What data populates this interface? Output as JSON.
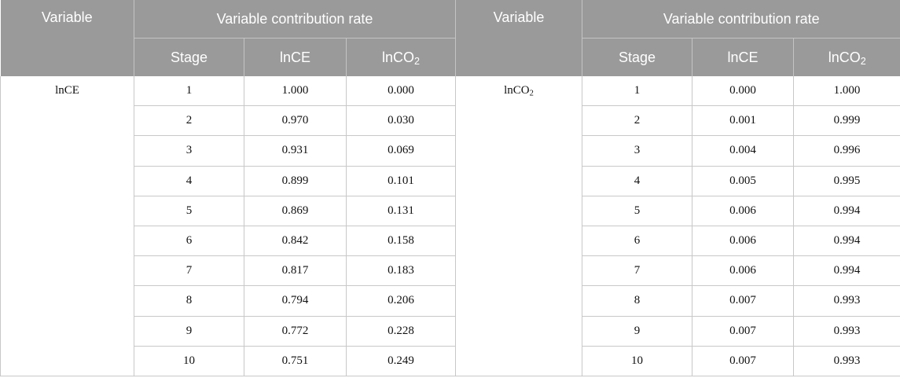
{
  "header": {
    "variable": "Variable",
    "contribution_rate": "Variable contribution rate",
    "stage": "Stage",
    "lnCE": "lnCE",
    "lnCO_prefix": "lnCO",
    "lnCO_sub": "2"
  },
  "left": {
    "variable": "lnCE",
    "rows": [
      {
        "stage": "1",
        "lnCE": "1.000",
        "lnCO2": "0.000"
      },
      {
        "stage": "2",
        "lnCE": "0.970",
        "lnCO2": "0.030"
      },
      {
        "stage": "3",
        "lnCE": "0.931",
        "lnCO2": "0.069"
      },
      {
        "stage": "4",
        "lnCE": "0.899",
        "lnCO2": "0.101"
      },
      {
        "stage": "5",
        "lnCE": "0.869",
        "lnCO2": "0.131"
      },
      {
        "stage": "6",
        "lnCE": "0.842",
        "lnCO2": "0.158"
      },
      {
        "stage": "7",
        "lnCE": "0.817",
        "lnCO2": "0.183"
      },
      {
        "stage": "8",
        "lnCE": "0.794",
        "lnCO2": "0.206"
      },
      {
        "stage": "9",
        "lnCE": "0.772",
        "lnCO2": "0.228"
      },
      {
        "stage": "10",
        "lnCE": "0.751",
        "lnCO2": "0.249"
      }
    ]
  },
  "right": {
    "variable_prefix": "lnCO",
    "variable_sub": "2",
    "rows": [
      {
        "stage": "1",
        "lnCE": "0.000",
        "lnCO2": "1.000"
      },
      {
        "stage": "2",
        "lnCE": "0.001",
        "lnCO2": "0.999"
      },
      {
        "stage": "3",
        "lnCE": "0.004",
        "lnCO2": "0.996"
      },
      {
        "stage": "4",
        "lnCE": "0.005",
        "lnCO2": "0.995"
      },
      {
        "stage": "5",
        "lnCE": "0.006",
        "lnCO2": "0.994"
      },
      {
        "stage": "6",
        "lnCE": "0.006",
        "lnCO2": "0.994"
      },
      {
        "stage": "7",
        "lnCE": "0.006",
        "lnCO2": "0.994"
      },
      {
        "stage": "8",
        "lnCE": "0.007",
        "lnCO2": "0.993"
      },
      {
        "stage": "9",
        "lnCE": "0.007",
        "lnCO2": "0.993"
      },
      {
        "stage": "10",
        "lnCE": "0.007",
        "lnCO2": "0.993"
      }
    ]
  },
  "colors": {
    "header_bg": "#9a9a9a",
    "header_text": "#ffffff",
    "grid_line": "#c8c8c8"
  }
}
